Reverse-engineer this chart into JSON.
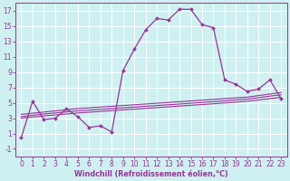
{
  "xlabel": "Windchill (Refroidissement éolien,°C)",
  "background_color": "#cff0f0",
  "grid_color": "#ffffff",
  "line_color": "#993399",
  "x_values": [
    0,
    1,
    2,
    3,
    4,
    5,
    6,
    7,
    8,
    9,
    10,
    11,
    12,
    13,
    14,
    15,
    16,
    17,
    18,
    19,
    20,
    21,
    22,
    23
  ],
  "temp_series": [
    0.5,
    5.2,
    2.8,
    3.0,
    4.2,
    3.2,
    1.8,
    2.0,
    1.2,
    9.2,
    12.0,
    14.5,
    16.0,
    15.8,
    17.2,
    17.2,
    15.2,
    14.8,
    8.0,
    7.4,
    6.5,
    6.8,
    8.0,
    5.5
  ],
  "linear1": [
    3.5,
    3.65,
    3.8,
    3.95,
    4.1,
    4.25,
    4.35,
    4.45,
    4.55,
    4.65,
    4.75,
    4.85,
    4.95,
    5.05,
    5.15,
    5.25,
    5.35,
    5.45,
    5.55,
    5.65,
    5.75,
    5.95,
    6.15,
    6.35
  ],
  "linear2": [
    3.2,
    3.38,
    3.55,
    3.68,
    3.82,
    3.95,
    4.05,
    4.15,
    4.25,
    4.35,
    4.45,
    4.55,
    4.65,
    4.75,
    4.85,
    4.95,
    5.05,
    5.15,
    5.25,
    5.38,
    5.5,
    5.68,
    5.88,
    6.05
  ],
  "linear3": [
    3.0,
    3.15,
    3.3,
    3.42,
    3.55,
    3.68,
    3.78,
    3.88,
    3.98,
    4.08,
    4.18,
    4.28,
    4.38,
    4.48,
    4.58,
    4.68,
    4.78,
    4.88,
    4.98,
    5.1,
    5.22,
    5.38,
    5.55,
    5.72
  ],
  "ylim": [
    -2,
    18
  ],
  "xlim": [
    -0.5,
    23.5
  ],
  "yticks": [
    -1,
    1,
    3,
    5,
    7,
    9,
    11,
    13,
    15,
    17
  ],
  "xticks": [
    0,
    1,
    2,
    3,
    4,
    5,
    6,
    7,
    8,
    9,
    10,
    11,
    12,
    13,
    14,
    15,
    16,
    17,
    18,
    19,
    20,
    21,
    22,
    23
  ],
  "tick_fontsize": 5.5,
  "xlabel_fontsize": 5.8
}
